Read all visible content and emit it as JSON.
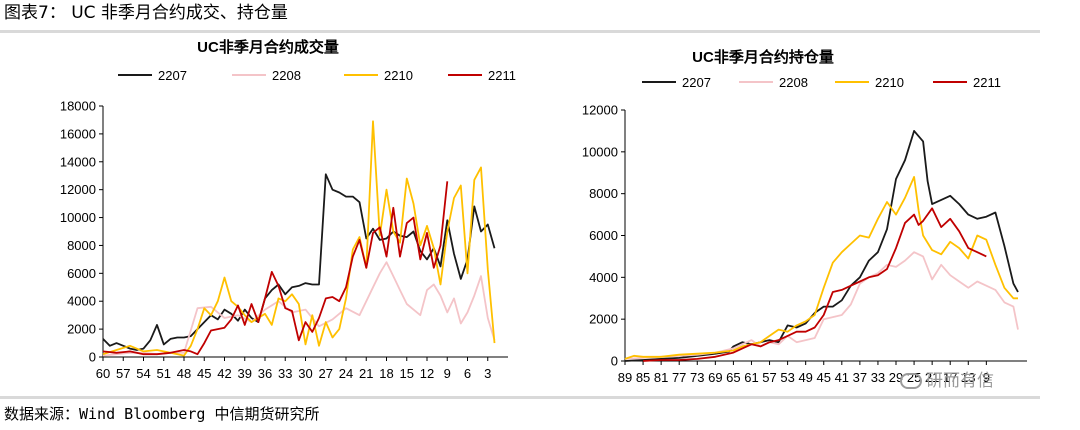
{
  "figure": {
    "title": "图表7： UC 非季月合约成交、持仓量",
    "source": "数据来源：Wind  Bloomberg  中信期货研究所",
    "watermark": "研而有信"
  },
  "colors": {
    "2207": "#1a1a1a",
    "2208": "#f4c4c8",
    "2210": "#ffc000",
    "2211": "#c00000"
  },
  "chart_data": [
    {
      "type": "line",
      "title": "UC非季月合约成交量",
      "xlabel": "",
      "ylabel": "",
      "x_ticks": [
        "60",
        "57",
        "54",
        "51",
        "48",
        "45",
        "42",
        "39",
        "36",
        "33",
        "30",
        "27",
        "24",
        "21",
        "18",
        "15",
        "12",
        "9",
        "6",
        "3"
      ],
      "x_range": [
        60,
        0
      ],
      "ylim": [
        0,
        18000
      ],
      "y_ticks": [
        0,
        2000,
        4000,
        6000,
        8000,
        10000,
        12000,
        14000,
        16000,
        18000
      ],
      "legend": "top",
      "series": [
        {
          "name": "2207",
          "x": [
            60,
            59,
            58,
            57,
            56,
            55,
            54,
            53,
            52,
            51,
            50,
            49,
            48,
            47,
            46,
            45,
            44,
            43,
            42,
            41,
            40,
            39,
            38,
            37,
            36,
            35,
            34,
            33,
            32,
            31,
            30,
            29,
            28,
            27,
            26,
            25,
            24,
            23,
            22,
            21,
            20,
            19,
            18,
            17,
            16,
            15,
            14,
            13,
            12,
            11,
            10,
            9,
            8,
            7,
            6,
            5,
            4,
            3,
            2
          ],
          "y": [
            1300,
            800,
            1000,
            800,
            600,
            500,
            600,
            1200,
            2300,
            900,
            1300,
            1400,
            1400,
            1500,
            2000,
            2500,
            3000,
            2700,
            3400,
            3100,
            2600,
            3400,
            2800,
            2500,
            4200,
            4800,
            5200,
            4500,
            5000,
            5100,
            5300,
            5200,
            5200,
            13100,
            12000,
            11800,
            11500,
            11500,
            11100,
            8500,
            9200,
            8400,
            8500,
            9000,
            8700,
            8600,
            9000,
            7600,
            7000,
            7800,
            6500,
            9800,
            7400,
            5600,
            7000,
            10800,
            9000,
            9500,
            7800
          ]
        },
        {
          "name": "2208",
          "x": [
            60,
            58,
            56,
            54,
            52,
            50,
            48,
            46,
            44,
            42,
            40,
            38,
            36,
            34,
            32,
            30,
            28,
            26,
            24,
            22,
            21,
            20,
            19,
            18,
            17,
            16,
            15,
            14,
            13,
            12,
            11,
            10,
            9,
            8,
            7,
            6,
            5,
            4,
            3,
            2
          ],
          "y": [
            100,
            200,
            300,
            300,
            200,
            300,
            300,
            3500,
            3600,
            2800,
            3000,
            2500,
            3400,
            4000,
            3200,
            3400,
            2200,
            2700,
            3500,
            3000,
            4000,
            5000,
            6000,
            6800,
            5800,
            4800,
            3800,
            3400,
            3000,
            4800,
            5200,
            4400,
            3200,
            4200,
            2400,
            3200,
            4400,
            5800,
            2800,
            1200
          ]
        },
        {
          "name": "2210",
          "x": [
            60,
            58,
            56,
            54,
            52,
            50,
            48,
            47,
            46,
            45,
            44,
            43,
            42,
            41,
            40,
            39,
            38,
            37,
            36,
            35,
            34,
            33,
            32,
            31,
            30,
            29,
            28,
            27,
            26,
            25,
            24,
            23,
            22,
            21,
            20,
            19,
            18,
            17,
            16,
            15,
            14,
            13,
            12,
            11,
            10,
            9,
            8,
            7,
            6,
            5,
            4,
            3,
            2
          ],
          "y": [
            200,
            500,
            800,
            400,
            500,
            300,
            100,
            800,
            2000,
            3500,
            3000,
            4000,
            5700,
            4000,
            3600,
            3000,
            2500,
            2800,
            3100,
            2300,
            4200,
            4000,
            4500,
            3800,
            900,
            3000,
            800,
            2500,
            1400,
            2000,
            4200,
            7700,
            8600,
            6400,
            16900,
            8700,
            12000,
            9000,
            8200,
            12800,
            11000,
            8000,
            9400,
            7800,
            5200,
            9000,
            11400,
            12300,
            6000,
            12700,
            13600,
            6300,
            1000
          ]
        },
        {
          "name": "2211",
          "x": [
            60,
            58,
            56,
            54,
            52,
            50,
            48,
            47,
            46,
            45,
            44,
            43,
            42,
            41,
            40,
            39,
            38,
            37,
            36,
            35,
            34,
            33,
            32,
            31,
            30,
            29,
            28,
            27,
            26,
            25,
            24,
            23,
            22,
            21,
            20,
            19,
            18,
            17,
            16,
            15,
            14,
            13,
            12,
            11,
            10,
            9
          ],
          "y": [
            400,
            300,
            400,
            200,
            200,
            300,
            500,
            400,
            200,
            1000,
            1900,
            2000,
            2100,
            2700,
            3700,
            2300,
            3800,
            2500,
            4200,
            6100,
            5100,
            3500,
            3300,
            1200,
            2500,
            1800,
            2800,
            4200,
            4300,
            4000,
            5000,
            7200,
            8400,
            6400,
            8900,
            9300,
            7200,
            10700,
            7200,
            9600,
            10000,
            7000,
            8900,
            6400,
            8000,
            12600
          ]
        }
      ]
    },
    {
      "type": "line",
      "title": "UC非季月合约持仓量",
      "xlabel": "",
      "ylabel": "",
      "x_ticks": [
        "89",
        "85",
        "81",
        "77",
        "73",
        "69",
        "65",
        "61",
        "57",
        "53",
        "49",
        "45",
        "41",
        "37",
        "33",
        "29",
        "25",
        "21",
        "17",
        "13",
        "9"
      ],
      "x_range": [
        89,
        0
      ],
      "ylim": [
        0,
        12000
      ],
      "y_ticks": [
        0,
        2000,
        4000,
        6000,
        8000,
        10000,
        12000
      ],
      "legend": "top",
      "series": [
        {
          "name": "2207",
          "x": [
            89,
            85,
            81,
            77,
            73,
            69,
            66,
            65,
            63,
            61,
            59,
            57,
            55,
            53,
            51,
            49,
            47,
            45,
            43,
            41,
            39,
            37,
            35,
            33,
            31,
            29,
            27,
            25,
            23,
            22,
            21,
            19,
            17,
            15,
            13,
            11,
            9,
            7,
            5,
            3,
            2
          ],
          "y": [
            0,
            50,
            100,
            150,
            250,
            350,
            450,
            700,
            900,
            800,
            900,
            1000,
            900,
            1700,
            1600,
            1800,
            2300,
            2600,
            2600,
            2900,
            3600,
            4000,
            4800,
            5200,
            6300,
            8700,
            9600,
            11000,
            10500,
            8600,
            7500,
            7700,
            7900,
            7500,
            7000,
            6800,
            6900,
            7100,
            5500,
            3700,
            3300
          ]
        },
        {
          "name": "2208",
          "x": [
            89,
            85,
            81,
            77,
            73,
            69,
            65,
            63,
            61,
            59,
            57,
            55,
            53,
            51,
            49,
            47,
            45,
            43,
            41,
            39,
            37,
            35,
            33,
            31,
            29,
            27,
            25,
            23,
            21,
            19,
            17,
            15,
            13,
            11,
            9,
            7,
            5,
            3,
            2
          ],
          "y": [
            100,
            150,
            200,
            250,
            300,
            400,
            600,
            800,
            1000,
            700,
            900,
            800,
            1200,
            900,
            1000,
            1100,
            2000,
            2100,
            2200,
            2700,
            3700,
            4000,
            4200,
            4600,
            4500,
            4800,
            5200,
            5000,
            3900,
            4600,
            4100,
            3800,
            3500,
            3800,
            3600,
            3400,
            2800,
            2600,
            1500
          ]
        },
        {
          "name": "2210",
          "x": [
            89,
            87,
            85,
            81,
            77,
            73,
            69,
            65,
            63,
            61,
            59,
            57,
            55,
            53,
            51,
            49,
            47,
            45,
            43,
            41,
            39,
            37,
            35,
            33,
            31,
            29,
            27,
            25,
            24,
            23,
            21,
            19,
            17,
            15,
            13,
            11,
            9,
            7,
            5,
            3,
            2
          ],
          "y": [
            100,
            250,
            200,
            200,
            300,
            350,
            400,
            500,
            700,
            800,
            900,
            1200,
            1500,
            1400,
            1700,
            1900,
            2200,
            3500,
            4700,
            5200,
            5600,
            6000,
            5900,
            6800,
            7600,
            7000,
            7800,
            8800,
            7200,
            6000,
            5300,
            5100,
            5700,
            5400,
            4900,
            6000,
            5800,
            4600,
            3500,
            3000,
            3000
          ]
        },
        {
          "name": "2211",
          "x": [
            85,
            81,
            77,
            73,
            69,
            65,
            63,
            61,
            59,
            57,
            55,
            53,
            51,
            49,
            47,
            45,
            43,
            41,
            39,
            37,
            35,
            33,
            31,
            29,
            27,
            25,
            24,
            23,
            21,
            19,
            17,
            15,
            13,
            11,
            9
          ],
          "y": [
            0,
            50,
            50,
            100,
            200,
            400,
            600,
            800,
            700,
            900,
            1000,
            1200,
            1400,
            1400,
            1600,
            2200,
            3300,
            3400,
            3600,
            3800,
            4000,
            4100,
            4400,
            5400,
            6600,
            7000,
            6500,
            6700,
            7300,
            6400,
            6800,
            6200,
            5400,
            5200,
            5000
          ]
        }
      ]
    }
  ]
}
